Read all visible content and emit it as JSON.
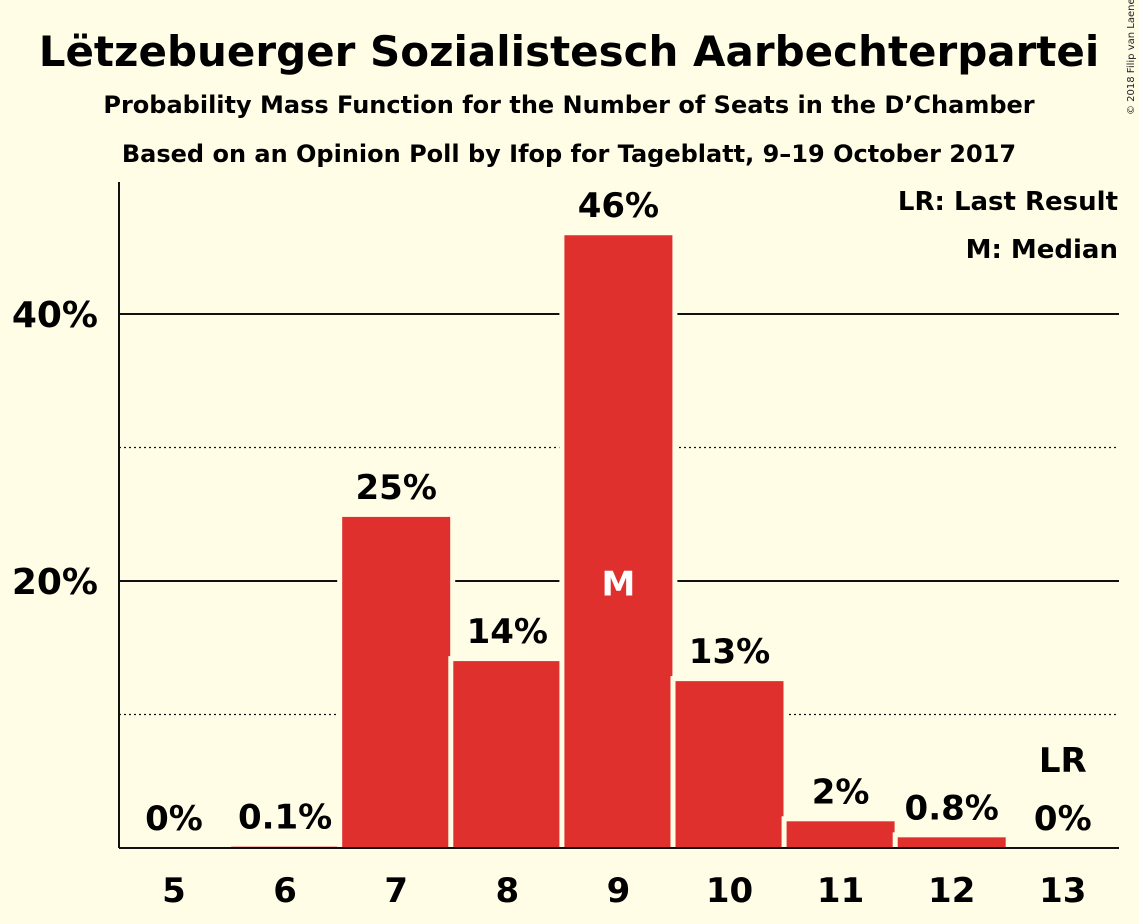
{
  "chart_data": {
    "type": "bar",
    "title": "Lëtzebuerger Sozialistesch Aarbechterpartei",
    "subtitle": "Probability Mass Function for the Number of Seats in the D’Chamber",
    "subtitle2": "Based on an Opinion Poll by Ifop for Tageblatt, 9–19 October 2017",
    "copyright": "© 2018 Filip van Laenen",
    "categories": [
      "5",
      "6",
      "7",
      "8",
      "9",
      "10",
      "11",
      "12",
      "13"
    ],
    "values": [
      0,
      0.1,
      24.8,
      14.0,
      45.9,
      12.5,
      2.0,
      0.8,
      0
    ],
    "value_labels": [
      "0%",
      "0.1%",
      "25%",
      "14%",
      "46%",
      "13%",
      "2%",
      "0.8%",
      "0%"
    ],
    "ylim": [
      0,
      50
    ],
    "yticks_major": [
      20,
      40
    ],
    "ytick_labels": [
      "20%",
      "40%"
    ],
    "yticks_minor": [
      10,
      30
    ],
    "median_index": 4,
    "median_marker": "M",
    "last_result_index": 8,
    "last_result_marker": "LR",
    "legend": [
      "LR: Last Result",
      "M: Median"
    ],
    "legend_position": "top-right",
    "bar_color": "#e0302d"
  }
}
